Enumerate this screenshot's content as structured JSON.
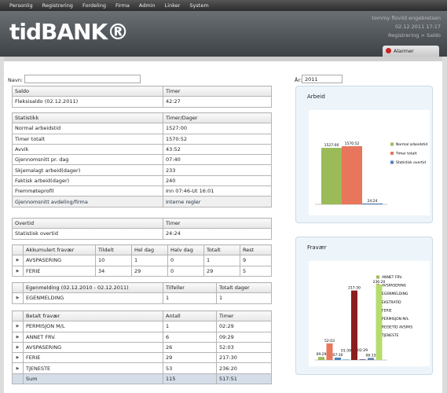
{
  "menu": [
    "Personlig",
    "Registrering",
    "Fordeling",
    "Firma",
    "Admin",
    "Linker",
    "System"
  ],
  "header": {
    "logo": "tidBANK®",
    "user": "tommy flovild engebretsen",
    "datetime": "02.12.2011 17:17",
    "breadcrumb": [
      "Registrering",
      "Saldo"
    ]
  },
  "alarm_tab": "Alarmer",
  "filters": {
    "name_label": "Navn:",
    "year_label": "År:",
    "year": "2011"
  },
  "tables": [
    {
      "headers": [
        "Saldo",
        "Timer"
      ],
      "rows": [
        [
          "Fleksisaldo (02.12.2011)",
          "42:27"
        ]
      ]
    },
    {
      "headers": [
        "Statistikk",
        "Timer/Dager"
      ],
      "rows": [
        [
          "Normal arbeidstid",
          "1527:00"
        ],
        [
          "Timer totalt",
          "1570:52"
        ],
        [
          "Avvik",
          "43:52"
        ],
        [
          "Gjennomsnitt pr. dag",
          "07:40"
        ],
        [
          "Skjemalagt arbeid(dager)",
          "233"
        ],
        [
          "Faktisk arbeid(dager)",
          "240"
        ],
        [
          "Fremmøteprofil",
          "Inn 07:46-Ut 16:01"
        ]
      ],
      "links": [
        "Gjennomsnitt avdeling/firma",
        "Interne regler"
      ]
    },
    {
      "headers": [
        "Overtid",
        "Timer"
      ],
      "rows": [
        [
          "Statistisk overtid",
          "24:24"
        ]
      ]
    },
    {
      "headers": [
        "Akkumulert fravær",
        "Tildelt",
        "Hel dag",
        "Halv dag",
        "Totalt",
        "Rest"
      ],
      "rows": [
        [
          "AVSPASERING",
          "10",
          "1",
          "0",
          "1",
          "9"
        ],
        [
          "FERIE",
          "34",
          "29",
          "0",
          "29",
          "5"
        ]
      ]
    },
    {
      "headers": [
        "Egenmelding (02.12.2010 - 02.12.2011)",
        "Tilfeller",
        "Totalt dager"
      ],
      "rows": [
        [
          "EGENMELDING",
          "1",
          "1"
        ]
      ]
    },
    {
      "headers": [
        "Betalt fravær",
        "Antall",
        "Timer"
      ],
      "rows": [
        [
          "PERMISJON M/L",
          "1",
          "02:29"
        ],
        [
          "ANNET FRV.",
          "6",
          "09:29"
        ],
        [
          "AVSPASERING",
          "26",
          "52:03"
        ],
        [
          "FERIE",
          "29",
          "217:30"
        ],
        [
          "TJENESTE",
          "53",
          "236:20"
        ]
      ],
      "footer": [
        "Sum",
        "115",
        "517:51"
      ]
    }
  ],
  "chart_data": [
    {
      "type": "bar",
      "title": "Arbeid",
      "series": [
        {
          "name": "Normal arbeidstid",
          "color": "#9bbb59",
          "values": [
            1527
          ],
          "value_labels": [
            "1527:00"
          ]
        },
        {
          "name": "Timer totalt",
          "color": "#e8765c",
          "values": [
            1570.87
          ],
          "value_labels": [
            "1570:52"
          ]
        },
        {
          "name": "Statistisk overtid",
          "color": "#4f81bd",
          "values": [
            24.4
          ],
          "value_labels": [
            "24:24"
          ]
        }
      ]
    },
    {
      "type": "bar",
      "title": "Fravær",
      "series": [
        {
          "name": "ANNET FRV.",
          "color": "#9bbb59",
          "values": [
            9.48
          ],
          "value_labels": [
            "09:29"
          ]
        },
        {
          "name": "AVSPASERING",
          "color": "#e8765c",
          "values": [
            52.05
          ],
          "value_labels": [
            "52:03"
          ]
        },
        {
          "name": "EGENMELDING",
          "color": "#4f81bd",
          "values": [
            7.5
          ],
          "value_labels": [
            "07:30"
          ]
        },
        {
          "name": "EKSTRATID",
          "color": "#4bacc6",
          "values": [
            1.65
          ],
          "value_labels": [
            "01:39"
          ]
        },
        {
          "name": "FERIE",
          "color": "#8b1e1e",
          "values": [
            217.5
          ],
          "value_labels": [
            "217:30"
          ]
        },
        {
          "name": "PERMISJON M/L",
          "color": "#8064a2",
          "values": [
            2.48
          ],
          "value_labels": [
            "02:29"
          ]
        },
        {
          "name": "REISETID AVSPAS",
          "color": "#5b7fa6",
          "values": [
            6.25
          ],
          "value_labels": [
            "06:15"
          ]
        },
        {
          "name": "TJENESTE",
          "color": "#b6dc6e",
          "values": [
            236.33
          ],
          "value_labels": [
            "236:20"
          ]
        }
      ]
    }
  ]
}
